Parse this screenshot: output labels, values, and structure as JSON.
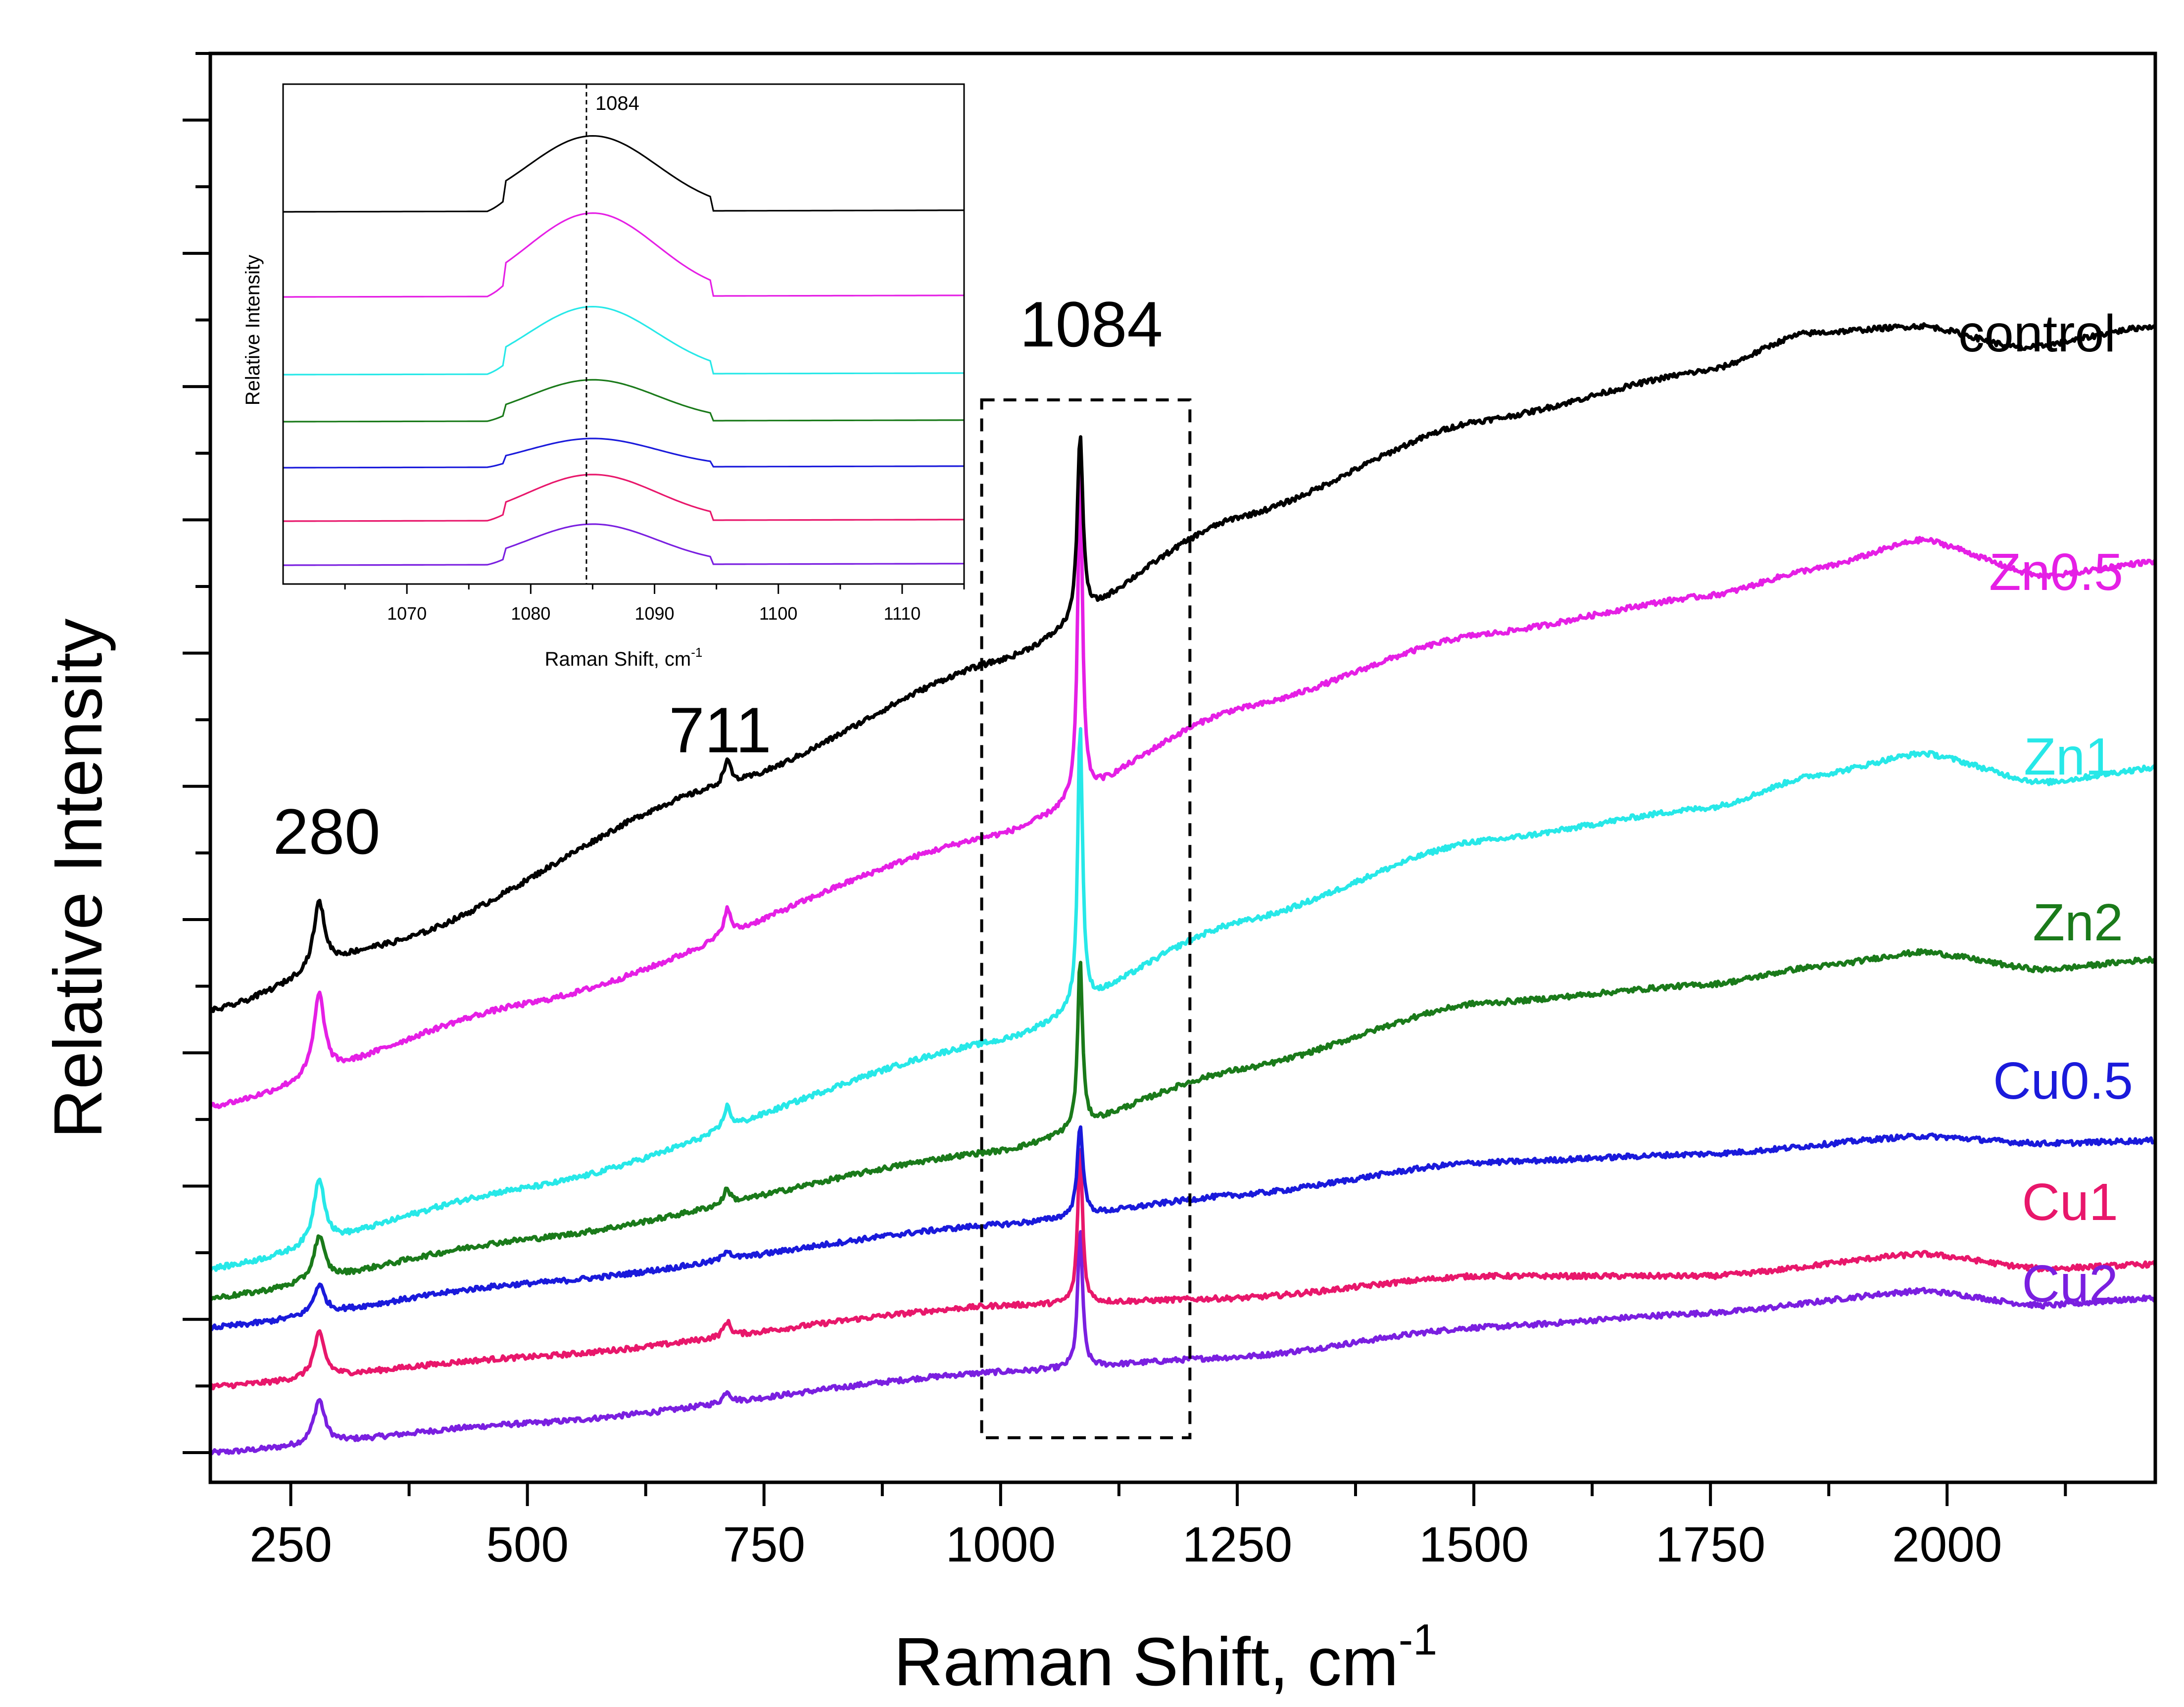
{
  "chart_data": {
    "type": "line",
    "title": "",
    "xlabel": "Raman Shift, cm",
    "xlabel_superscript": "-1",
    "ylabel": "Relative Intensity",
    "xlim": [
      165,
      2220
    ],
    "x_ticks": [
      250,
      500,
      750,
      1000,
      1250,
      1500,
      1750,
      2000
    ],
    "y_tick_labels": "none",
    "grid": false,
    "legend": "inline labels at right end of each trace",
    "peak_annotations": [
      {
        "label": "280",
        "x": 280
      },
      {
        "label": "711",
        "x": 711
      },
      {
        "label": "1084",
        "x": 1084
      }
    ],
    "highlight_box": {
      "x_range": [
        980,
        1200
      ],
      "style": "dashed"
    },
    "series": [
      {
        "name": "control",
        "color": "#000000",
        "baseline": [
          [
            165,
            0.0
          ],
          [
            350,
            0.45
          ],
          [
            700,
            1.52
          ],
          [
            1000,
            2.38
          ],
          [
            1250,
            3.35
          ],
          [
            1500,
            4.0
          ],
          [
            1750,
            4.35
          ],
          [
            1850,
            4.6
          ],
          [
            1975,
            4.65
          ],
          [
            2080,
            4.5
          ],
          [
            2220,
            4.65
          ]
        ],
        "peaks": [
          {
            "x": 280,
            "height": 0.45,
            "width": 14
          },
          {
            "x": 711,
            "height": 0.17,
            "width": 9
          },
          {
            "x": 1084,
            "height": 1.26,
            "width": 7
          }
        ]
      },
      {
        "name": "Zn0.5",
        "color": "#E51FE5",
        "baseline": [
          [
            165,
            -0.65
          ],
          [
            500,
            0.05
          ],
          [
            1000,
            1.2
          ],
          [
            1250,
            2.05
          ],
          [
            1500,
            2.55
          ],
          [
            1750,
            2.82
          ],
          [
            1860,
            3.0
          ],
          [
            1975,
            3.2
          ],
          [
            2100,
            2.95
          ],
          [
            2220,
            3.05
          ]
        ],
        "peaks": [
          {
            "x": 280,
            "height": 0.55,
            "width": 14
          },
          {
            "x": 711,
            "height": 0.18,
            "width": 9
          },
          {
            "x": 1084,
            "height": 2.23,
            "width": 6
          }
        ]
      },
      {
        "name": "Zn1",
        "color": "#27E8E8",
        "baseline": [
          [
            165,
            -1.75
          ],
          [
            500,
            -1.2
          ],
          [
            1000,
            -0.2
          ],
          [
            1250,
            0.6
          ],
          [
            1500,
            1.15
          ],
          [
            1750,
            1.38
          ],
          [
            1860,
            1.6
          ],
          [
            1975,
            1.75
          ],
          [
            2100,
            1.55
          ],
          [
            2220,
            1.65
          ]
        ],
        "peaks": [
          {
            "x": 280,
            "height": 0.45,
            "width": 14
          },
          {
            "x": 711,
            "height": 0.15,
            "width": 9
          },
          {
            "x": 1084,
            "height": 1.93,
            "width": 6
          }
        ]
      },
      {
        "name": "Zn2",
        "color": "#1A7A1A",
        "baseline": [
          [
            165,
            -1.95
          ],
          [
            500,
            -1.55
          ],
          [
            1000,
            -0.95
          ],
          [
            1250,
            -0.4
          ],
          [
            1500,
            0.05
          ],
          [
            1750,
            0.18
          ],
          [
            1860,
            0.3
          ],
          [
            1975,
            0.4
          ],
          [
            2100,
            0.28
          ],
          [
            2220,
            0.35
          ]
        ],
        "peaks": [
          {
            "x": 280,
            "height": 0.3,
            "width": 14
          },
          {
            "x": 711,
            "height": 0.1,
            "width": 9
          },
          {
            "x": 1084,
            "height": 1.15,
            "width": 6
          }
        ]
      },
      {
        "name": "Cu0.5",
        "color": "#1A1ADB",
        "baseline": [
          [
            165,
            -2.15
          ],
          [
            500,
            -1.85
          ],
          [
            1000,
            -1.45
          ],
          [
            1250,
            -1.25
          ],
          [
            1500,
            -1.03
          ],
          [
            1750,
            -0.97
          ],
          [
            1975,
            -0.85
          ],
          [
            2100,
            -0.9
          ],
          [
            2220,
            -0.88
          ]
        ],
        "peaks": [
          {
            "x": 280,
            "height": 0.2,
            "width": 14
          },
          {
            "x": 711,
            "height": 0.07,
            "width": 9
          },
          {
            "x": 1084,
            "height": 0.63,
            "width": 7
          }
        ]
      },
      {
        "name": "Cu1",
        "color": "#E8176B",
        "baseline": [
          [
            165,
            -2.55
          ],
          [
            500,
            -2.35
          ],
          [
            1000,
            -2.0
          ],
          [
            1250,
            -1.95
          ],
          [
            1500,
            -1.8
          ],
          [
            1750,
            -1.8
          ],
          [
            1975,
            -1.65
          ],
          [
            2100,
            -1.75
          ],
          [
            2220,
            -1.72
          ]
        ],
        "peaks": [
          {
            "x": 280,
            "height": 0.3,
            "width": 14
          },
          {
            "x": 711,
            "height": 0.1,
            "width": 9
          },
          {
            "x": 1084,
            "height": 1.07,
            "width": 6
          }
        ]
      },
      {
        "name": "Cu2",
        "color": "#7A1FE0",
        "baseline": [
          [
            165,
            -3.0
          ],
          [
            500,
            -2.8
          ],
          [
            1000,
            -2.45
          ],
          [
            1250,
            -2.35
          ],
          [
            1500,
            -2.15
          ],
          [
            1750,
            -2.05
          ],
          [
            1975,
            -1.9
          ],
          [
            2100,
            -2.0
          ],
          [
            2220,
            -1.95
          ]
        ],
        "peaks": [
          {
            "x": 280,
            "height": 0.3,
            "width": 14
          },
          {
            "x": 711,
            "height": 0.08,
            "width": 9
          },
          {
            "x": 1084,
            "height": 0.95,
            "width": 6
          }
        ]
      }
    ],
    "inset": {
      "type": "line",
      "xlabel": "Raman Shift, cm",
      "xlabel_superscript": "-1",
      "ylabel": "Relative Intensity",
      "xlim": [
        1060,
        1115
      ],
      "x_ticks": [
        1070,
        1080,
        1090,
        1100,
        1110
      ],
      "marker_line": {
        "x": 1084.5,
        "label": "1084",
        "style": "dashed"
      },
      "series": [
        {
          "name": "control",
          "color": "#000000",
          "offset": 6,
          "peak_height": 0.95
        },
        {
          "name": "Zn0.5",
          "color": "#E51FE5",
          "offset": 5,
          "peak_height": 1.05
        },
        {
          "name": "Zn1",
          "color": "#27E8E8",
          "offset": 4,
          "peak_height": 0.85
        },
        {
          "name": "Zn2",
          "color": "#1A7A1A",
          "offset": 3,
          "peak_height": 0.52
        },
        {
          "name": "Cu0.5",
          "color": "#1A1ADB",
          "offset": 2,
          "peak_height": 0.36
        },
        {
          "name": "Cu1",
          "color": "#E8176B",
          "offset": 1,
          "peak_height": 0.58
        },
        {
          "name": "Cu2",
          "color": "#7A1FE0",
          "offset": 0,
          "peak_height": 0.51
        }
      ]
    }
  }
}
